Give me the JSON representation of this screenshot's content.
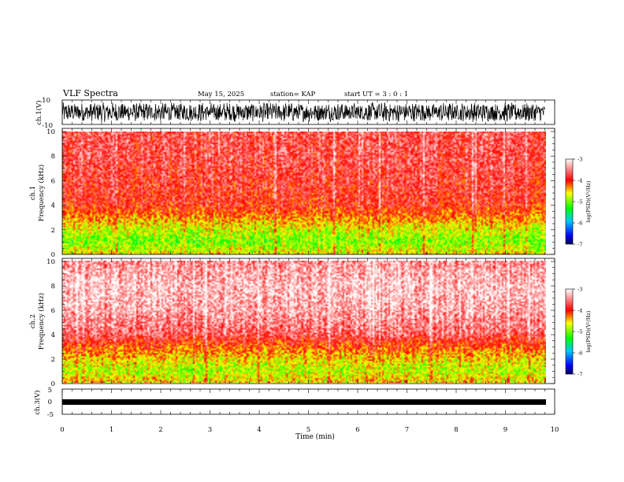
{
  "header": {
    "title": "VLF Spectra",
    "date": "May 15, 2025",
    "station": "station= KAP",
    "start": "start  UT =   3 : 0  : 1"
  },
  "chart_data": [
    {
      "type": "line",
      "id": "ch1-waveform",
      "ylabel": "ch.1(V)",
      "ylim": [
        -10,
        10
      ],
      "ytick_labels": [
        "10",
        "-10"
      ],
      "xlim": [
        0,
        10
      ],
      "data_extent_min": [
        0,
        9.8
      ],
      "note_values": "dense voltage trace oscillating mostly between about -8 and +8 V across the whole record"
    },
    {
      "type": "heatmap",
      "id": "ch1-spectrogram",
      "ylabel": "ch.1\nFrequency  (kHz)",
      "ylim": [
        0,
        10
      ],
      "ytick_labels": [
        "0",
        "2",
        "4",
        "6",
        "8",
        "10"
      ],
      "xlim": [
        0,
        10
      ],
      "data_extent_min": [
        0,
        9.8
      ],
      "colorbar": {
        "label": "log(PSD)(V²/Hz)",
        "range": [
          -7,
          -3
        ],
        "tick_labels": [
          "-3",
          "-4",
          "-5",
          "-6",
          "-7"
        ],
        "colors": [
          "#000060",
          "#0000ff",
          "#00c8ff",
          "#00ff00",
          "#ffff00",
          "#ff0000",
          "#ffffff"
        ]
      },
      "profile_log_psd_by_kHz": [
        [
          0,
          -4.6
        ],
        [
          1,
          -5.0
        ],
        [
          2,
          -4.7
        ],
        [
          3,
          -4.3
        ],
        [
          4,
          -3.9
        ],
        [
          6,
          -3.8
        ],
        [
          8,
          -3.7
        ],
        [
          10,
          -3.7
        ]
      ]
    },
    {
      "type": "heatmap",
      "id": "ch2-spectrogram",
      "ylabel": "ch.2\nFrequency  (kHz)",
      "ylim": [
        0,
        10
      ],
      "ytick_labels": [
        "0",
        "2",
        "4",
        "6",
        "8",
        "10"
      ],
      "xlim": [
        0,
        10
      ],
      "data_extent_min": [
        0,
        9.8
      ],
      "colorbar": {
        "label": "log(PSD)(V²/Hz)",
        "range": [
          -7,
          -3
        ],
        "tick_labels": [
          "-3",
          "-4",
          "-5",
          "-6",
          "-7"
        ],
        "colors": [
          "#000060",
          "#0000ff",
          "#00c8ff",
          "#00ff00",
          "#ffff00",
          "#ff0000",
          "#ffffff"
        ]
      },
      "profile_log_psd_by_kHz": [
        [
          0,
          -4.5
        ],
        [
          1,
          -4.8
        ],
        [
          2,
          -4.5
        ],
        [
          3,
          -4.1
        ],
        [
          4,
          -3.6
        ],
        [
          6,
          -3.3
        ],
        [
          8,
          -3.2
        ],
        [
          10,
          -3.4
        ]
      ]
    },
    {
      "type": "line",
      "id": "ch3-waveform",
      "ylabel": "ch.3(V)",
      "ylim": [
        -5,
        5
      ],
      "ytick_labels": [
        "5",
        "0",
        "-5"
      ],
      "xlim": [
        0,
        10
      ],
      "data_extent_min": [
        0,
        9.8
      ],
      "note_values": "narrow trace centred near -1 V"
    }
  ],
  "x_axis": {
    "label": "Time  (min)",
    "tick_labels": [
      "0",
      "1",
      "2",
      "3",
      "4",
      "5",
      "6",
      "7",
      "8",
      "9",
      "10"
    ]
  }
}
